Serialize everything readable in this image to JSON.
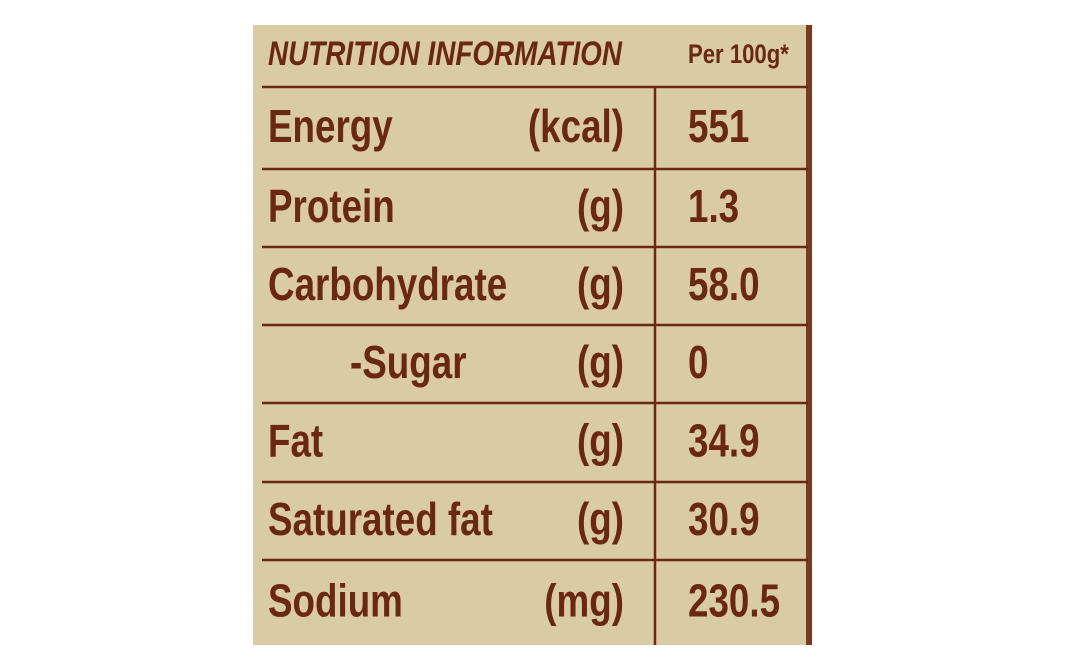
{
  "header": {
    "title": "NUTRITION INFORMATION",
    "per": "Per 100g*"
  },
  "table": {
    "rows": [
      [
        "Energy",
        "(kcal)",
        "551"
      ],
      [
        "Protein",
        "(g)",
        "1.3"
      ],
      [
        "Carbohydrate",
        "(g)",
        "58.0"
      ],
      [
        "-Sugar",
        "(g)",
        "0"
      ],
      [
        "Fat",
        "(g)",
        "34.9"
      ],
      [
        "Saturated fat",
        "(g)",
        "30.9"
      ],
      [
        "Sodium",
        "(mg)",
        "230.5"
      ]
    ]
  }
}
